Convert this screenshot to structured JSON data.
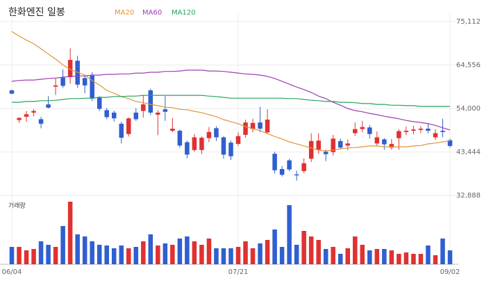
{
  "chart_data": {
    "type": "candlestick",
    "title": "한화엔진 일봉",
    "volume_label": "거래량",
    "categories": [
      "06/04",
      null,
      null,
      null,
      null,
      null,
      null,
      null,
      null,
      null,
      null,
      null,
      null,
      null,
      null,
      null,
      null,
      null,
      null,
      null,
      null,
      null,
      null,
      null,
      null,
      null,
      null,
      null,
      null,
      null,
      null,
      "07/21",
      null,
      null,
      null,
      null,
      null,
      null,
      null,
      null,
      null,
      null,
      null,
      null,
      null,
      null,
      null,
      null,
      null,
      null,
      null,
      null,
      null,
      null,
      null,
      null,
      null,
      null,
      null,
      null,
      "09/02"
    ],
    "open": [
      58400,
      51200,
      52000,
      53000,
      51400,
      55000,
      59300,
      61500,
      61600,
      65600,
      61400,
      62000,
      56800,
      53600,
      53000,
      50300,
      47800,
      53000,
      53400,
      58400,
      52500,
      53800,
      48600,
      48600,
      45800,
      43900,
      43900,
      46800,
      49200,
      47000,
      45700,
      45400,
      47600,
      49000,
      50600,
      48200,
      43000,
      39300,
      41400,
      38000,
      38800,
      41800,
      44000,
      43500,
      43400,
      46100,
      45000,
      48000,
      49000,
      49400,
      45500,
      46500,
      44500,
      46800,
      48300,
      48600,
      48800,
      49100,
      47000,
      48600,
      46300
    ],
    "high": [
      58600,
      51900,
      53400,
      53800,
      52000,
      57000,
      61400,
      63500,
      68600,
      66800,
      62000,
      62800,
      57000,
      54200,
      53500,
      50800,
      51800,
      54100,
      57200,
      58800,
      53600,
      57000,
      51700,
      48900,
      46200,
      47800,
      47200,
      49500,
      49700,
      47300,
      46200,
      48200,
      51300,
      51500,
      54400,
      53800,
      43500,
      40000,
      41800,
      38900,
      41900,
      48000,
      48000,
      44000,
      47600,
      46700,
      46500,
      50600,
      51000,
      50000,
      48400,
      46800,
      46600,
      49000,
      49600,
      49800,
      49700,
      50400,
      49000,
      51500,
      46700
    ],
    "low": [
      57500,
      50500,
      50800,
      52100,
      49200,
      54000,
      57300,
      59000,
      60000,
      59000,
      57700,
      55800,
      53400,
      51400,
      50800,
      45500,
      47200,
      51000,
      51800,
      52400,
      47500,
      51000,
      48200,
      44500,
      41900,
      43500,
      42900,
      45800,
      46100,
      41800,
      41500,
      44900,
      46900,
      48200,
      48200,
      47900,
      38200,
      37500,
      38800,
      36500,
      38300,
      41000,
      43000,
      41200,
      42600,
      44100,
      43900,
      47300,
      48200,
      46700,
      44800,
      44000,
      44000,
      44000,
      47500,
      47700,
      48000,
      48000,
      46400,
      47000,
      44500
    ],
    "close": [
      57600,
      51700,
      52600,
      53400,
      50300,
      54200,
      59600,
      59500,
      65800,
      59800,
      59600,
      56400,
      53900,
      51900,
      51600,
      46900,
      51600,
      51400,
      55000,
      53000,
      53000,
      53200,
      49100,
      45000,
      42800,
      47000,
      46900,
      48300,
      47000,
      42800,
      42400,
      47300,
      50600,
      50500,
      49100,
      51300,
      39000,
      37900,
      39200,
      37800,
      40700,
      46100,
      46200,
      42900,
      46700,
      44500,
      45500,
      49000,
      49500,
      47800,
      47000,
      45300,
      45400,
      48500,
      48600,
      48900,
      49100,
      48600,
      48000,
      48300,
      44900
    ],
    "up_color": "#e03131",
    "down_color": "#2f5fd0",
    "series": [
      {
        "name": "MA20",
        "color": "#e0953a",
        "values": [
          72700,
          71600,
          70600,
          69700,
          68500,
          67200,
          66000,
          64600,
          63500,
          62800,
          62100,
          60800,
          59700,
          58400,
          57700,
          56900,
          56400,
          55700,
          55400,
          55000,
          54700,
          54300,
          54200,
          53800,
          53700,
          53300,
          53000,
          52500,
          52000,
          51300,
          50800,
          50300,
          49600,
          49100,
          48600,
          47900,
          47200,
          46600,
          45900,
          45400,
          44900,
          44400,
          43900,
          43700,
          43900,
          44200,
          44400,
          44500,
          44700,
          44900,
          44900,
          44700,
          44700,
          44700,
          44700,
          44900,
          45000,
          45400,
          45600,
          45900,
          46200
        ]
      },
      {
        "name": "MA60",
        "color": "#9b3fb0",
        "values": [
          60600,
          60800,
          60900,
          60900,
          61100,
          61300,
          61400,
          61600,
          61800,
          61900,
          61900,
          62100,
          62100,
          62300,
          62300,
          62400,
          62400,
          62600,
          62600,
          62800,
          62800,
          63000,
          63000,
          63100,
          63300,
          63300,
          63300,
          63100,
          63100,
          63000,
          62800,
          62600,
          62400,
          62300,
          62100,
          61800,
          61300,
          60600,
          59900,
          59200,
          58600,
          57900,
          57000,
          56400,
          55500,
          54800,
          54000,
          53500,
          53200,
          52800,
          52500,
          52100,
          51800,
          51500,
          51100,
          50800,
          50600,
          50300,
          49900,
          49300,
          48800
        ]
      },
      {
        "name": "MA120",
        "color": "#27a35a",
        "values": [
          55500,
          55500,
          55700,
          55700,
          55900,
          55900,
          56000,
          56200,
          56400,
          56400,
          56500,
          56500,
          56700,
          56700,
          56900,
          56900,
          57000,
          57000,
          57200,
          57200,
          57200,
          57200,
          57200,
          57200,
          57200,
          57200,
          57200,
          57000,
          56900,
          56700,
          56500,
          56500,
          56500,
          56500,
          56500,
          56500,
          56500,
          56500,
          56400,
          56400,
          56200,
          56000,
          55900,
          55700,
          55700,
          55500,
          55500,
          55400,
          55200,
          55200,
          55000,
          55000,
          54800,
          54800,
          54700,
          54700,
          54500,
          54500,
          54500,
          54500,
          54500
        ]
      }
    ],
    "volume": [
      25,
      25,
      20,
      22,
      33,
      28,
      25,
      55,
      90,
      43,
      40,
      33,
      28,
      27,
      23,
      27,
      23,
      25,
      33,
      43,
      27,
      30,
      28,
      37,
      40,
      33,
      28,
      37,
      23,
      23,
      23,
      25,
      33,
      23,
      30,
      35,
      50,
      25,
      85,
      28,
      48,
      40,
      35,
      22,
      25,
      15,
      23,
      40,
      28,
      20,
      22,
      22,
      20,
      15,
      17,
      15,
      15,
      27,
      13,
      37,
      20
    ],
    "ylim": [
      32888,
      75112
    ],
    "yticks": [
      {
        "value": 32888,
        "label": "32,888"
      },
      {
        "value": 43444,
        "label": "43,444"
      },
      {
        "value": 54000,
        "label": "54,000"
      },
      {
        "value": 64556,
        "label": "64,556"
      },
      {
        "value": 75112,
        "label": "75,112"
      }
    ],
    "volume_ylim": [
      0,
      90
    ],
    "grid": true
  }
}
